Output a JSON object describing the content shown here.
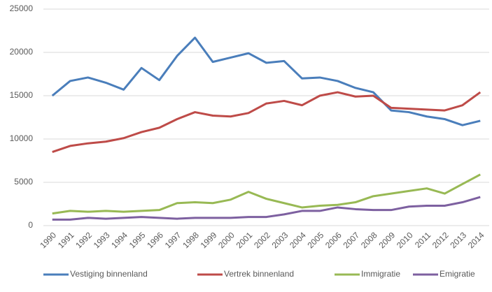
{
  "chart_data": {
    "type": "line",
    "categories": [
      "1990",
      "1991",
      "1992",
      "1993",
      "1994",
      "1995",
      "1996",
      "1997",
      "1998",
      "1999",
      "2000",
      "2001",
      "2002",
      "2003",
      "2004",
      "2005",
      "2006",
      "2007",
      "2008",
      "2009",
      "2010",
      "2011",
      "2012",
      "2013",
      "2014"
    ],
    "series": [
      {
        "name": "Vestiging binnenland",
        "color": "#4a7ebb",
        "values": [
          15000,
          16700,
          17100,
          16500,
          15700,
          18200,
          16800,
          19600,
          21700,
          18900,
          19400,
          19900,
          18800,
          19000,
          17000,
          17100,
          16700,
          15900,
          15400,
          13300,
          13100,
          12600,
          12300,
          11600,
          12100
        ]
      },
      {
        "name": "Vertrek binnenland",
        "color": "#be4b48",
        "values": [
          8500,
          9200,
          9500,
          9700,
          10100,
          10800,
          11300,
          12300,
          13100,
          12700,
          12600,
          13000,
          14100,
          14400,
          13900,
          15000,
          15400,
          14900,
          15000,
          13600,
          13500,
          13400,
          13300,
          13900,
          15400
        ]
      },
      {
        "name": "Immigratie",
        "color": "#98b954",
        "values": [
          1400,
          1700,
          1600,
          1700,
          1600,
          1700,
          1800,
          2600,
          2700,
          2600,
          3000,
          3900,
          3100,
          2600,
          2100,
          2300,
          2400,
          2700,
          3400,
          3700,
          4000,
          4300,
          3700,
          4800,
          5900
        ]
      },
      {
        "name": "Emigratie",
        "color": "#7d60a0",
        "values": [
          700,
          700,
          900,
          800,
          900,
          1000,
          900,
          800,
          900,
          900,
          900,
          1000,
          1000,
          1300,
          1700,
          1700,
          2100,
          1900,
          1800,
          1800,
          2200,
          2300,
          2300,
          2700,
          3300
        ]
      }
    ],
    "ylim": [
      0,
      25000
    ],
    "yticks": [
      0,
      5000,
      10000,
      15000,
      20000,
      25000
    ],
    "grid": true,
    "legend": "bottom"
  }
}
